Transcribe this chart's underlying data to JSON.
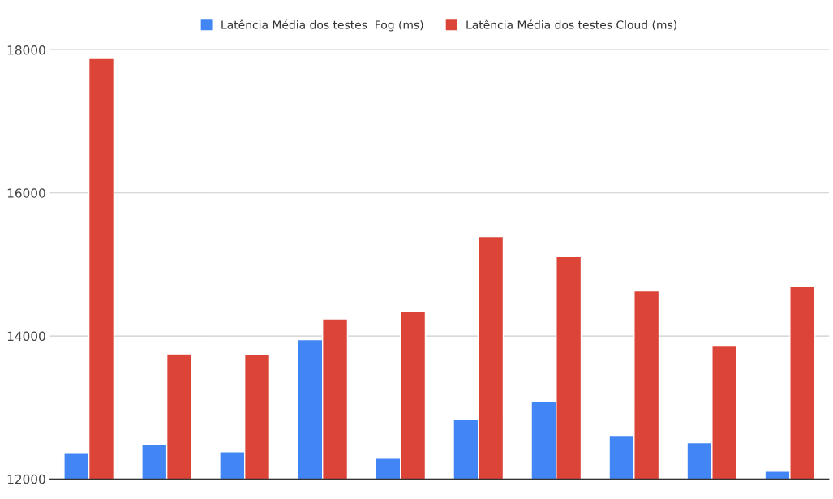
{
  "chart_data": {
    "type": "bar",
    "categories": [
      null,
      null,
      null,
      null,
      null,
      null,
      null,
      null,
      null,
      null
    ],
    "series": [
      {
        "name": "Latência Média dos testes  Fog (ms)",
        "color": "#4285f4",
        "values": [
          12370,
          12480,
          12380,
          13950,
          12290,
          12830,
          13080,
          12610,
          12510,
          12110
        ]
      },
      {
        "name": "Latência Média dos testes Cloud (ms)",
        "color": "#db4437",
        "values": [
          17880,
          13750,
          13740,
          14240,
          14350,
          15390,
          15110,
          14630,
          13860,
          14690
        ]
      }
    ],
    "ylim": [
      12000,
      18000
    ],
    "yticks": [
      12000,
      14000,
      16000,
      18000
    ],
    "grid": "y",
    "legend": "top"
  }
}
